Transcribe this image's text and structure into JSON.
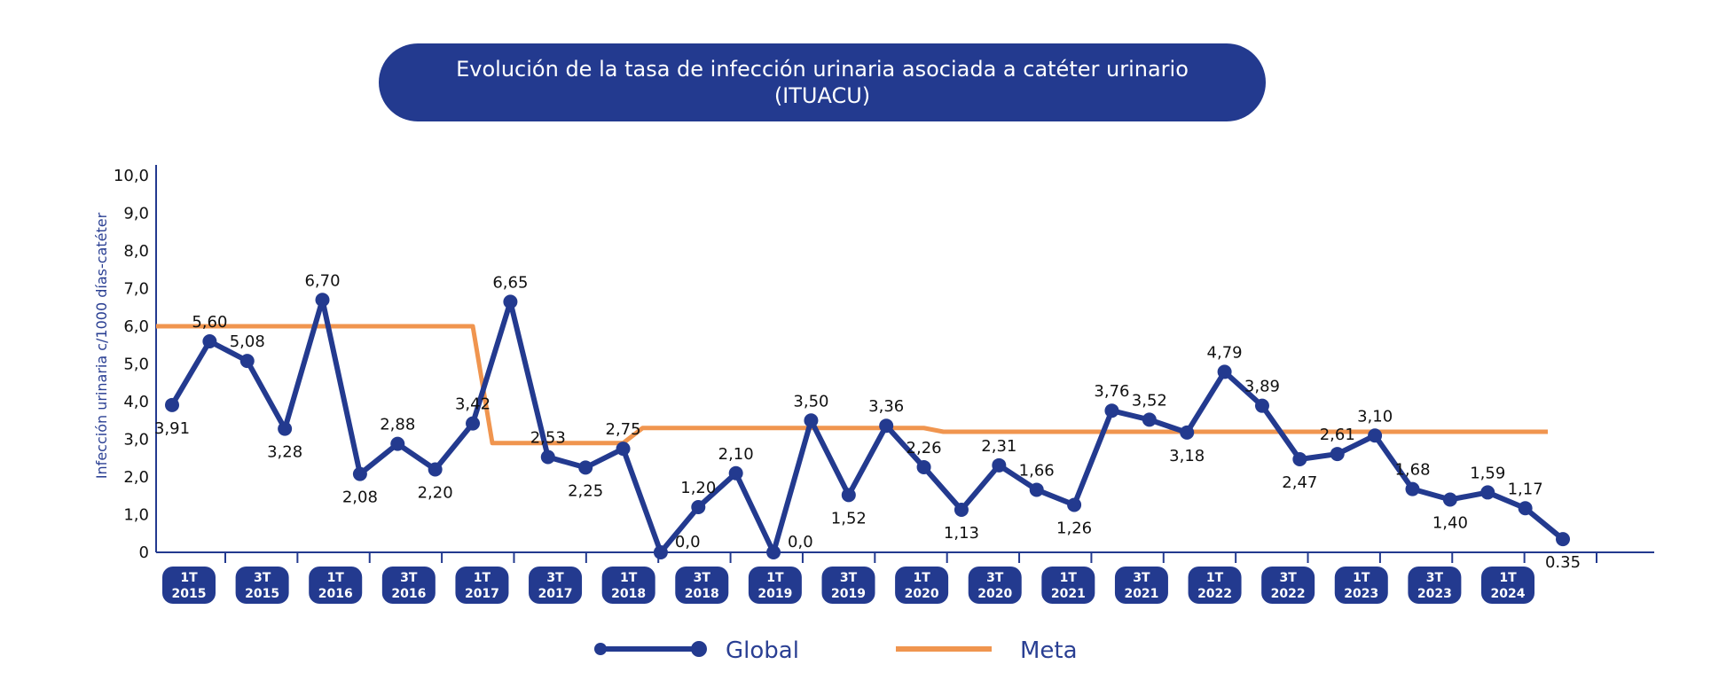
{
  "chart_data": {
    "type": "line",
    "title_line1": "Evolución de la tasa de infección urinaria asociada a catéter urinario",
    "title_line2": "(ITUACU)",
    "ylabel": "Infección urinaria c/1000 días-catéter",
    "ylim": [
      0,
      10
    ],
    "y_ticks": [
      "0",
      "1,0",
      "2,0",
      "3,0",
      "4,0",
      "5,0",
      "6,0",
      "7,0",
      "8,0",
      "9,0",
      "10,0"
    ],
    "period_labels": [
      [
        "1T",
        "2015"
      ],
      [
        "3T",
        "2015"
      ],
      [
        "1T",
        "2016"
      ],
      [
        "3T",
        "2016"
      ],
      [
        "1T",
        "2017"
      ],
      [
        "3T",
        "2017"
      ],
      [
        "1T",
        "2018"
      ],
      [
        "3T",
        "2018"
      ],
      [
        "1T",
        "2019"
      ],
      [
        "3T",
        "2019"
      ],
      [
        "1T",
        "2020"
      ],
      [
        "3T",
        "2020"
      ],
      [
        "1T",
        "2021"
      ],
      [
        "3T",
        "2021"
      ],
      [
        "1T",
        "2022"
      ],
      [
        "3T",
        "2022"
      ],
      [
        "1T",
        "2023"
      ],
      [
        "3T",
        "2023"
      ],
      [
        "1T",
        "2024"
      ]
    ],
    "series": [
      {
        "name": "Global",
        "color": "#233a8f",
        "values": [
          3.91,
          5.6,
          5.08,
          3.28,
          6.7,
          2.08,
          2.88,
          2.2,
          3.42,
          6.65,
          2.53,
          2.25,
          2.75,
          0.0,
          1.2,
          2.1,
          0.0,
          3.5,
          1.52,
          3.36,
          2.26,
          1.13,
          2.31,
          1.66,
          1.26,
          3.76,
          3.52,
          3.18,
          4.79,
          3.89,
          2.47,
          2.61,
          3.1,
          1.68,
          1.4,
          1.59,
          1.17,
          0.35
        ],
        "labels": [
          "3,91",
          "5,60",
          "5,08",
          "3,28",
          "6,70",
          "2,08",
          "2,88",
          "2,20",
          "3,42",
          "6,65",
          "2,53",
          "2,25",
          "2,75",
          "0,0",
          "1,20",
          "2,10",
          "0,0",
          "3,50",
          "1,52",
          "3,36",
          "2,26",
          "1,13",
          "2,31",
          "1,66",
          "1,26",
          "3,76",
          "3,52",
          "3,18",
          "4,79",
          "3,89",
          "2,47",
          "2,61",
          "3,10",
          "1,68",
          "1,40",
          "1,59",
          "1,17",
          "0.35"
        ]
      },
      {
        "name": "Meta",
        "color": "#f0954f",
        "steps": [
          {
            "from_period": 0,
            "to_period": 8,
            "value": 6.0
          },
          {
            "from_period": 8,
            "to_period": 12,
            "value": 2.9
          },
          {
            "from_period": 12,
            "to_period": 20,
            "value": 3.3
          },
          {
            "from_period": 20,
            "to_period": 38,
            "value": 3.2
          }
        ]
      }
    ],
    "legend": [
      "Global",
      "Meta"
    ],
    "legend_position": "bottom"
  }
}
